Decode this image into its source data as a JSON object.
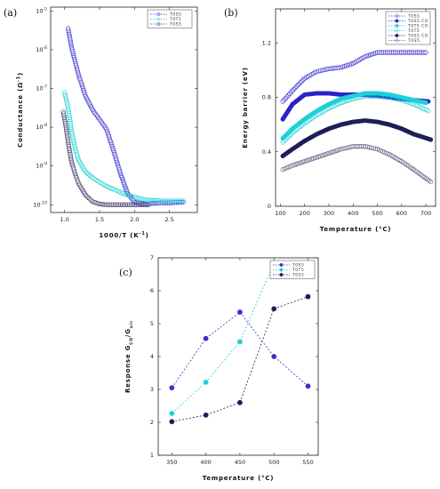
{
  "chart_data": [
    {
      "type": "scatter",
      "panel_label": "(a)",
      "xlabel": "1000/T (K",
      "xlabel_sup": "-1",
      "xlabel_end": ")",
      "ylabel": "Conductance (Ω",
      "ylabel_sup": "-1",
      "ylabel_end": ")",
      "xlim": [
        0.8,
        2.9
      ],
      "ylim": [
        -10.2,
        -4.9
      ],
      "y_log": true,
      "x_ticks": [
        "1.0",
        "1.5",
        "2.0",
        "2.5"
      ],
      "y_ticks": [
        {
          "base": "10",
          "exp": "-5",
          "v": -5
        },
        {
          "base": "10",
          "exp": "-6",
          "v": -6
        },
        {
          "base": "10",
          "exp": "-7",
          "v": -7
        },
        {
          "base": "10",
          "exp": "-8",
          "v": -8
        },
        {
          "base": "10",
          "exp": "-9",
          "v": -9
        },
        {
          "base": "10",
          "exp": "-10",
          "v": -10
        }
      ],
      "legend": [
        "T0S5",
        "T0T5",
        "T0S5"
      ],
      "series": [
        {
          "color": "#3a30d0",
          "fill": "none",
          "x": [
            1.05,
            1.1,
            1.2,
            1.3,
            1.4,
            1.5,
            1.6,
            1.7,
            1.8,
            1.9,
            2.0,
            2.1,
            2.2,
            2.3,
            2.4,
            2.5,
            2.6,
            2.7
          ],
          "y": [
            -5.45,
            -5.95,
            -6.65,
            -7.2,
            -7.55,
            -7.8,
            -8.05,
            -8.6,
            -9.2,
            -9.7,
            -9.93,
            -9.97,
            -9.97,
            -9.96,
            -9.95,
            -9.95,
            -9.94,
            -9.93
          ]
        },
        {
          "color": "#1ed0d8",
          "fill": "none",
          "x": [
            1.0,
            1.05,
            1.1,
            1.15,
            1.2,
            1.3,
            1.4,
            1.5,
            1.6,
            1.7,
            1.8,
            1.9,
            2.0,
            2.1,
            2.2,
            2.3,
            2.4,
            2.5,
            2.6,
            2.7
          ],
          "y": [
            -7.1,
            -7.5,
            -8.1,
            -8.55,
            -8.85,
            -9.15,
            -9.3,
            -9.42,
            -9.52,
            -9.6,
            -9.68,
            -9.75,
            -9.8,
            -9.85,
            -9.88,
            -9.89,
            -9.9,
            -9.9,
            -9.9,
            -9.9
          ]
        },
        {
          "color": "#3c3c6a",
          "fill": "none",
          "x": [
            0.98,
            1.02,
            1.06,
            1.1,
            1.15,
            1.2,
            1.3,
            1.4,
            1.5,
            1.6,
            1.7,
            1.8,
            1.9,
            2.0,
            2.1,
            2.2
          ],
          "y": [
            -7.6,
            -8.0,
            -8.5,
            -8.9,
            -9.2,
            -9.45,
            -9.75,
            -9.92,
            -9.98,
            -10.0,
            -10.0,
            -10.0,
            -10.0,
            -10.0,
            -10.0,
            -10.0
          ]
        }
      ]
    },
    {
      "type": "scatter",
      "panel_label": "(b)",
      "xlabel": "Temperature (°C)",
      "ylabel": "Energy barrier (eV)",
      "xlim": [
        80,
        740
      ],
      "ylim": [
        0,
        1.45
      ],
      "x_ticks": [
        100,
        200,
        300,
        400,
        500,
        600,
        700
      ],
      "y_ticks": [
        {
          "label": "0",
          "v": 0
        },
        {
          "label": "0.4",
          "v": 0.4
        },
        {
          "label": "0.8",
          "v": 0.8
        },
        {
          "label": "1.2",
          "v": 1.2
        }
      ],
      "legend": [
        "T0S5",
        "T0S5 CO",
        "T0T5 CO",
        "T0T5",
        "T0S5 CO",
        "T0S5"
      ],
      "series": [
        {
          "color": "#3a30d0",
          "fill": "none",
          "x": [
            110,
            150,
            200,
            250,
            300,
            350,
            400,
            450,
            500,
            550,
            600,
            650,
            700
          ],
          "y": [
            0.77,
            0.85,
            0.94,
            0.99,
            1.01,
            1.02,
            1.05,
            1.1,
            1.13,
            1.13,
            1.13,
            1.13,
            1.13
          ]
        },
        {
          "color": "#2a22c8",
          "fill": "solid",
          "x": [
            110,
            150,
            200,
            250,
            300,
            350,
            400,
            450,
            500,
            550,
            600,
            650,
            710
          ],
          "y": [
            0.64,
            0.75,
            0.82,
            0.83,
            0.83,
            0.82,
            0.82,
            0.82,
            0.81,
            0.8,
            0.79,
            0.78,
            0.77
          ]
        },
        {
          "color": "#1ed0d8",
          "fill": "solid",
          "x": [
            110,
            150,
            200,
            250,
            300,
            350,
            400,
            450,
            500,
            550,
            600,
            650,
            700
          ],
          "y": [
            0.5,
            0.57,
            0.64,
            0.7,
            0.75,
            0.79,
            0.81,
            0.83,
            0.83,
            0.82,
            0.8,
            0.78,
            0.76
          ]
        },
        {
          "color": "#1ed0d8",
          "fill": "none",
          "x": [
            110,
            150,
            200,
            250,
            300,
            350,
            400,
            450,
            500,
            550,
            600,
            650,
            710
          ],
          "y": [
            0.47,
            0.54,
            0.61,
            0.67,
            0.72,
            0.76,
            0.79,
            0.81,
            0.81,
            0.8,
            0.78,
            0.75,
            0.7
          ]
        },
        {
          "color": "#1e1e58",
          "fill": "solid",
          "x": [
            110,
            150,
            200,
            250,
            300,
            350,
            400,
            450,
            500,
            550,
            600,
            650,
            720
          ],
          "y": [
            0.37,
            0.42,
            0.48,
            0.53,
            0.57,
            0.6,
            0.62,
            0.63,
            0.62,
            0.6,
            0.57,
            0.53,
            0.49
          ]
        },
        {
          "color": "#5a5a80",
          "fill": "none",
          "x": [
            110,
            150,
            200,
            250,
            300,
            350,
            400,
            450,
            500,
            550,
            600,
            650,
            720
          ],
          "y": [
            0.27,
            0.3,
            0.33,
            0.36,
            0.39,
            0.42,
            0.44,
            0.44,
            0.42,
            0.38,
            0.33,
            0.27,
            0.18
          ]
        }
      ]
    },
    {
      "type": "line",
      "panel_label": "(c)",
      "xlabel": "Temperature (°C)",
      "ylabel": "Response G",
      "ylabel_sub1": "CO",
      "ylabel_mid": "/G",
      "ylabel_sub2": "air",
      "xlim": [
        330,
        565
      ],
      "ylim": [
        1,
        7
      ],
      "x_ticks": [
        350,
        400,
        450,
        500,
        550
      ],
      "y_ticks": [
        1,
        2,
        3,
        4,
        5,
        6,
        7
      ],
      "legend": [
        "T0S5",
        "T0T5",
        "T0S5"
      ],
      "series": [
        {
          "color": "#3a30d0",
          "x": [
            350,
            400,
            450,
            500,
            550
          ],
          "y": [
            3.05,
            4.55,
            5.35,
            4.0,
            3.1
          ]
        },
        {
          "color": "#1ed0d8",
          "x": [
            350,
            400,
            450,
            500
          ],
          "y": [
            2.27,
            3.22,
            4.45,
            6.85
          ]
        },
        {
          "color": "#1e1e58",
          "x": [
            350,
            400,
            450,
            500,
            550
          ],
          "y": [
            2.02,
            2.22,
            2.6,
            5.45,
            5.82
          ]
        }
      ]
    }
  ]
}
